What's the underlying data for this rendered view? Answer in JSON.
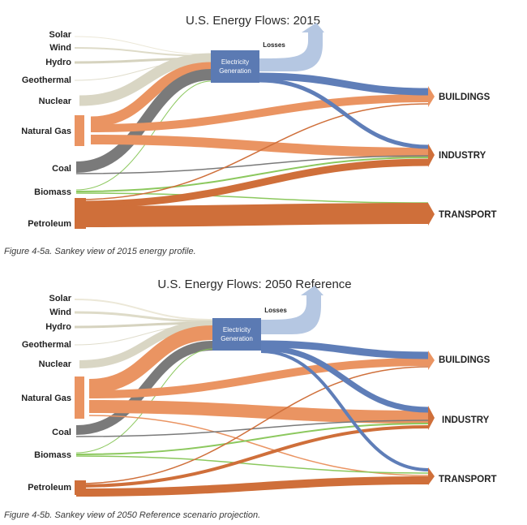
{
  "colors": {
    "solar": "#ece8d8",
    "wind": "#dedbc8",
    "hydro": "#d6d3bf",
    "geothermal": "#e0ddcc",
    "nuclear": "#d9d6c4",
    "natural_gas": "#ea9462",
    "coal": "#7a7a7a",
    "biomass": "#8cc85e",
    "petroleum": "#cf6f3a",
    "electricity_node": "#5b7ab3",
    "electricity_flow": "#5f7eb8",
    "losses": "#b5c7e2"
  },
  "diagrams": [
    {
      "title": "U.S. Energy Flows: 2015",
      "caption": "Figure 4-5a. Sankey view of 2015 energy profile.",
      "electricity_node": [
        "Electricity",
        "Generation"
      ],
      "losses_label": "Losses",
      "sources": [
        "Solar",
        "Wind",
        "Hydro",
        "Geothermal",
        "Nuclear",
        "Natural Gas",
        "Coal",
        "Biomass",
        "Petroleum"
      ],
      "sinks": [
        "BUILDINGS",
        "INDUSTRY",
        "TRANSPORT"
      ]
    },
    {
      "title": "U.S. Energy Flows: 2050 Reference",
      "caption": "Figure 4-5b. Sankey view of 2050 Reference scenario projection.",
      "electricity_node": [
        "Electricity",
        "Generation"
      ],
      "losses_label": "Losses",
      "sources": [
        "Solar",
        "Wind",
        "Hydro",
        "Geothermal",
        "Nuclear",
        "Natural Gas",
        "Coal",
        "Biomass",
        "Petroleum"
      ],
      "sinks": [
        "BUILDINGS",
        "INDUSTRY",
        "TRANSPORT"
      ]
    }
  ]
}
